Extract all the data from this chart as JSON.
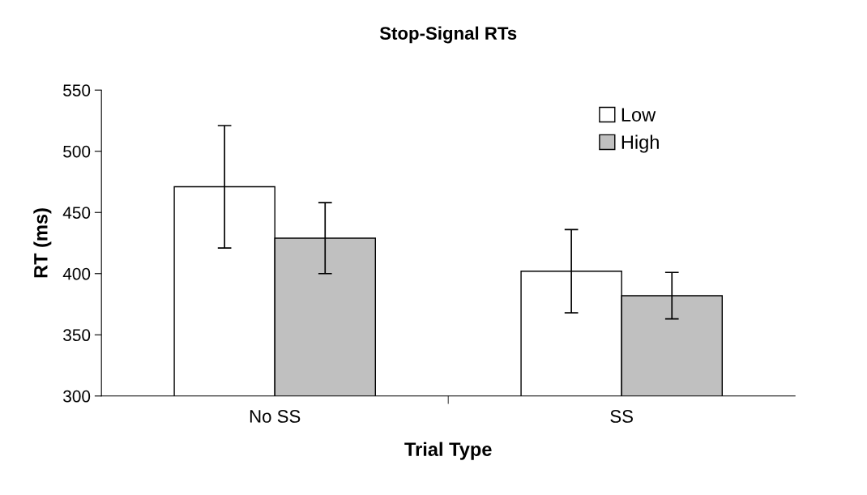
{
  "chart_data": {
    "type": "bar",
    "title": "Stop-Signal RTs",
    "xlabel": "Trial Type",
    "ylabel": "RT (ms)",
    "categories": [
      "No SS",
      "SS"
    ],
    "series": [
      {
        "name": "Low",
        "color": "#ffffff",
        "values": [
          471,
          402
        ],
        "errors": [
          50,
          34
        ]
      },
      {
        "name": "High",
        "color": "#c0c0c0",
        "values": [
          429,
          382
        ],
        "errors": [
          29,
          19
        ]
      }
    ],
    "ylim": [
      300,
      550
    ],
    "yticks": [
      300,
      350,
      400,
      450,
      500,
      550
    ],
    "grid": false,
    "legend": "top right"
  }
}
